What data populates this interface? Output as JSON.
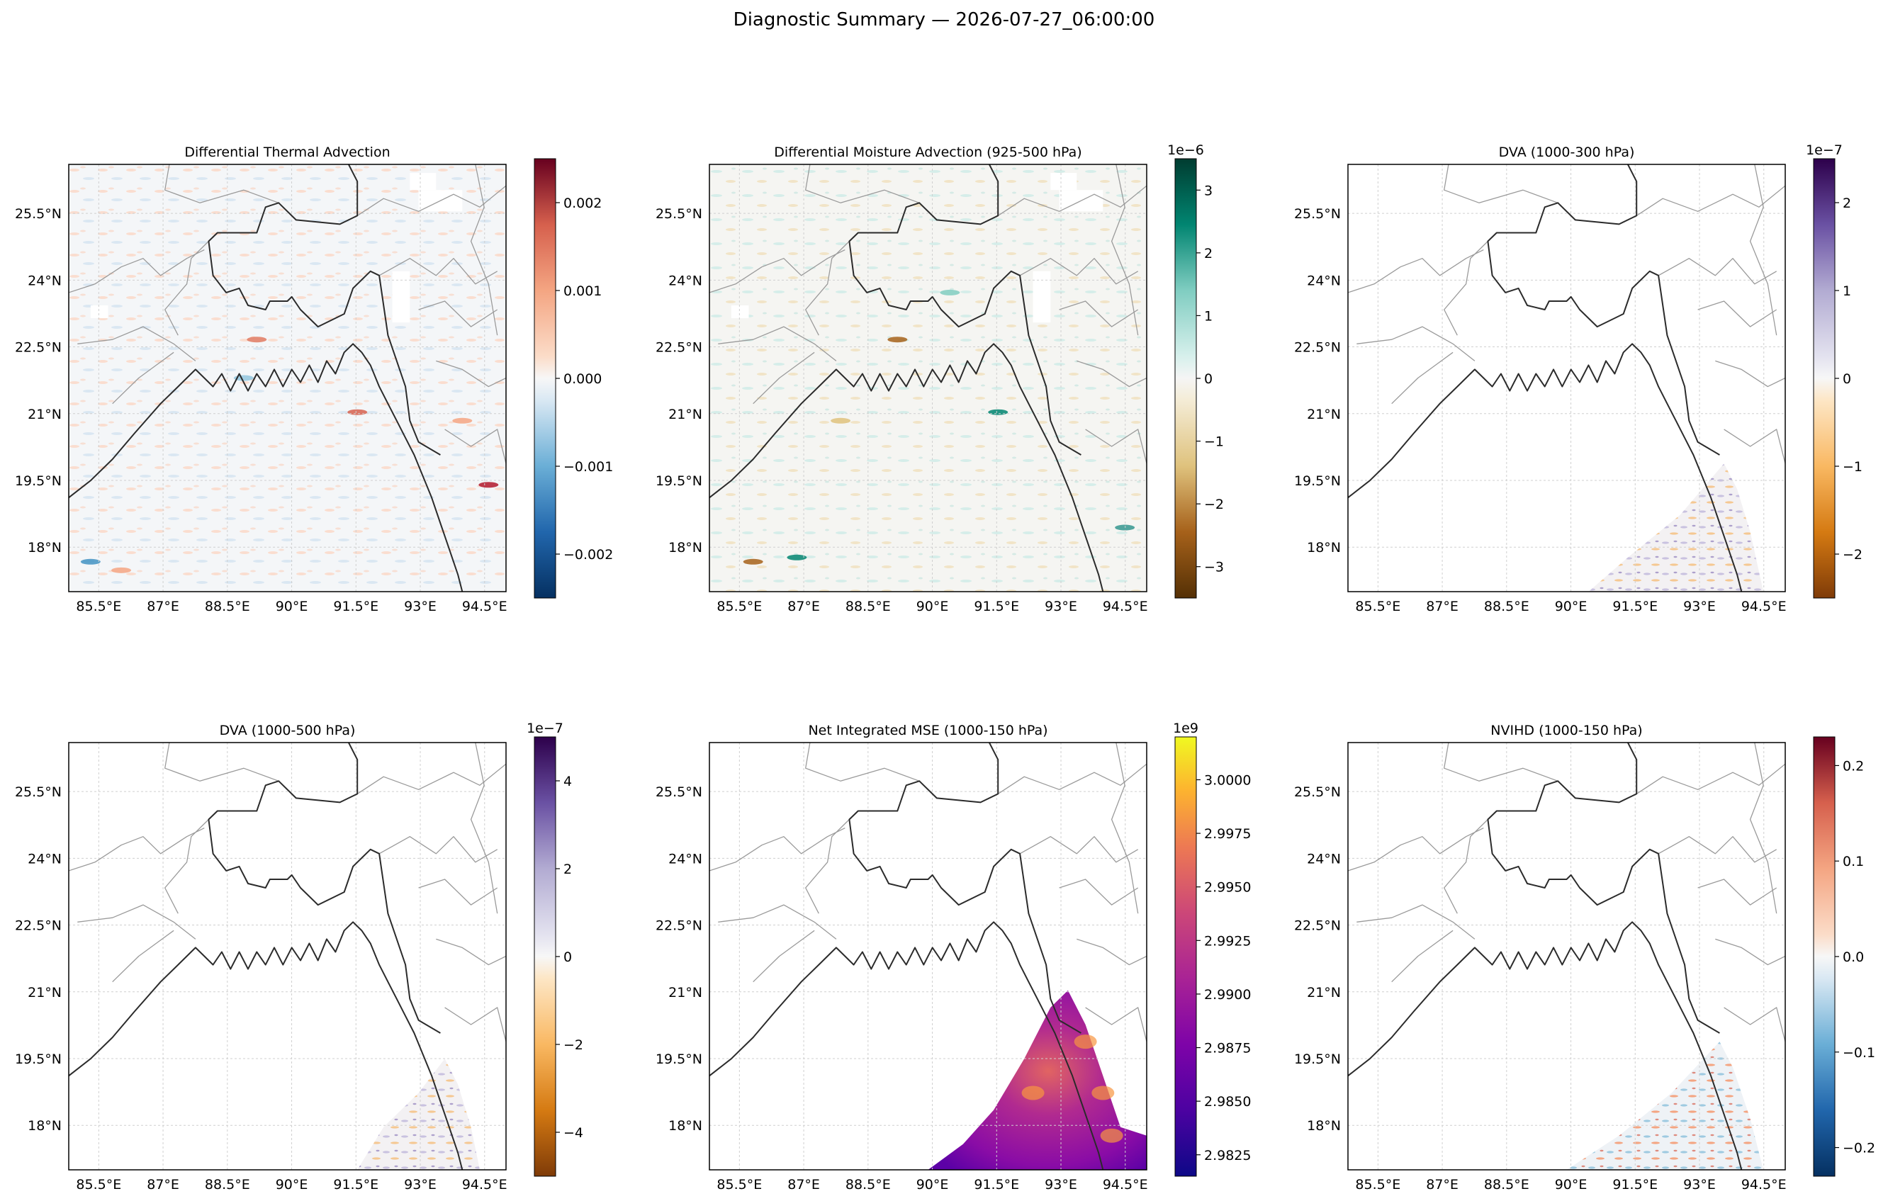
{
  "suptitle": "Diagnostic Summary — 2026-07-27_06:00:00",
  "lon_labels": [
    "85.5°E",
    "87°E",
    "88.5°E",
    "90°E",
    "91.5°E",
    "93°E",
    "94.5°E"
  ],
  "lat_labels": [
    "25.5°N",
    "24°N",
    "22.5°N",
    "21°N",
    "19.5°N",
    "18°N"
  ],
  "chart_data": [
    {
      "type": "heatmap",
      "title": "Differential Thermal Advection",
      "lon_range": [
        84.8,
        95.0
      ],
      "lat_range": [
        17.0,
        26.6
      ],
      "colormap": "RdBu_r",
      "colorbar": {
        "range": [
          -0.0025,
          0.0025
        ],
        "ticks": [
          "−0.002",
          "−0.001",
          "0.000",
          "0.001",
          "0.002"
        ],
        "tick_values": [
          -0.002,
          -0.001,
          0.0,
          0.001,
          0.002
        ],
        "exponent": ""
      },
      "coverage": "full"
    },
    {
      "type": "heatmap",
      "title": "Differential Moisture Advection (925-500 hPa)",
      "lon_range": [
        84.8,
        95.0
      ],
      "lat_range": [
        17.0,
        26.6
      ],
      "colormap": "BrBG",
      "colorbar": {
        "range": [
          -3.5,
          3.5
        ],
        "ticks": [
          "−3",
          "−2",
          "−1",
          "0",
          "1",
          "2",
          "3"
        ],
        "tick_values": [
          -3,
          -2,
          -1,
          0,
          1,
          2,
          3
        ],
        "exponent": "1e−6"
      },
      "coverage": "full"
    },
    {
      "type": "heatmap",
      "title": "DVA (1000-300 hPa)",
      "lon_range": [
        84.8,
        95.0
      ],
      "lat_range": [
        17.0,
        26.6
      ],
      "colormap": "PuOr",
      "colorbar": {
        "range": [
          -2.5,
          2.5
        ],
        "ticks": [
          "−2",
          "−1",
          "0",
          "1",
          "2"
        ],
        "tick_values": [
          -2,
          -1,
          0,
          1,
          2
        ],
        "exponent": "1e−7"
      },
      "coverage": "southeast"
    },
    {
      "type": "heatmap",
      "title": "DVA (1000-500 hPa)",
      "lon_range": [
        84.8,
        95.0
      ],
      "lat_range": [
        17.0,
        26.6
      ],
      "colormap": "PuOr",
      "colorbar": {
        "range": [
          -5.0,
          5.0
        ],
        "ticks": [
          "−4",
          "−2",
          "0",
          "2",
          "4"
        ],
        "tick_values": [
          -4,
          -2,
          0,
          2,
          4
        ],
        "exponent": "1e−7"
      },
      "coverage": "southeast"
    },
    {
      "type": "heatmap",
      "title": "Net Integrated MSE (1000-150 hPa)",
      "lon_range": [
        84.8,
        95.0
      ],
      "lat_range": [
        17.0,
        26.6
      ],
      "colormap": "plasma",
      "colorbar": {
        "range": [
          2.9815,
          3.002
        ],
        "ticks": [
          "2.9825",
          "2.9850",
          "2.9875",
          "2.9900",
          "2.9925",
          "2.9950",
          "2.9975",
          "3.0000"
        ],
        "tick_values": [
          2.9825,
          2.985,
          2.9875,
          2.99,
          2.9925,
          2.995,
          2.9975,
          3.0
        ],
        "exponent": "1e9"
      },
      "coverage": "southeast"
    },
    {
      "type": "heatmap",
      "title": "NVIHD (1000-150 hPa)",
      "lon_range": [
        84.8,
        95.0
      ],
      "lat_range": [
        17.0,
        26.6
      ],
      "colormap": "RdBu_r",
      "colorbar": {
        "range": [
          -0.23,
          0.23
        ],
        "ticks": [
          "−0.2",
          "−0.1",
          "0.0",
          "0.1",
          "0.2"
        ],
        "tick_values": [
          -0.2,
          -0.1,
          0.0,
          0.1,
          0.2
        ],
        "exponent": ""
      },
      "coverage": "southeast"
    }
  ]
}
